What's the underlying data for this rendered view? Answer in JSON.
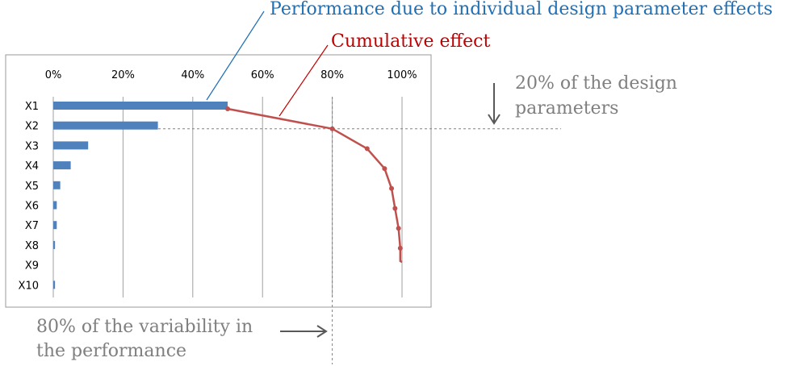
{
  "annotations": {
    "performance": "Performance due to individual design parameter effects",
    "cumulative": "Cumulative effect",
    "design_params_line1": "20% of the design",
    "design_params_line2": "parameters",
    "variability_line1": "80% of the variability in",
    "variability_line2": "the performance"
  },
  "colors": {
    "bar": "#4f81bd",
    "cumulative_line": "#c0504d",
    "performance_annotation": "#1f6fb5",
    "cumulative_annotation": "#c00000",
    "note_text": "#7f7f7f",
    "grid": "#a0a0a0",
    "guide": "#808080"
  },
  "chart_data": {
    "type": "bar",
    "orientation": "horizontal",
    "categories": [
      "X1",
      "X2",
      "X3",
      "X4",
      "X5",
      "X6",
      "X7",
      "X8",
      "X9",
      "X10"
    ],
    "series": [
      {
        "values": [
          50,
          30,
          10,
          5,
          2,
          1,
          1,
          0.5,
          0,
          0.5
        ]
      },
      {
        "type": "line",
        "values": [
          50,
          80,
          90,
          95,
          97,
          98,
          99,
          99.5,
          99.5,
          100
        ]
      }
    ],
    "tick_labels": [
      "0%",
      "20%",
      "40%",
      "60%",
      "80%",
      "100%"
    ],
    "xlim": [
      0,
      100
    ],
    "grid": true,
    "legend": "none"
  }
}
